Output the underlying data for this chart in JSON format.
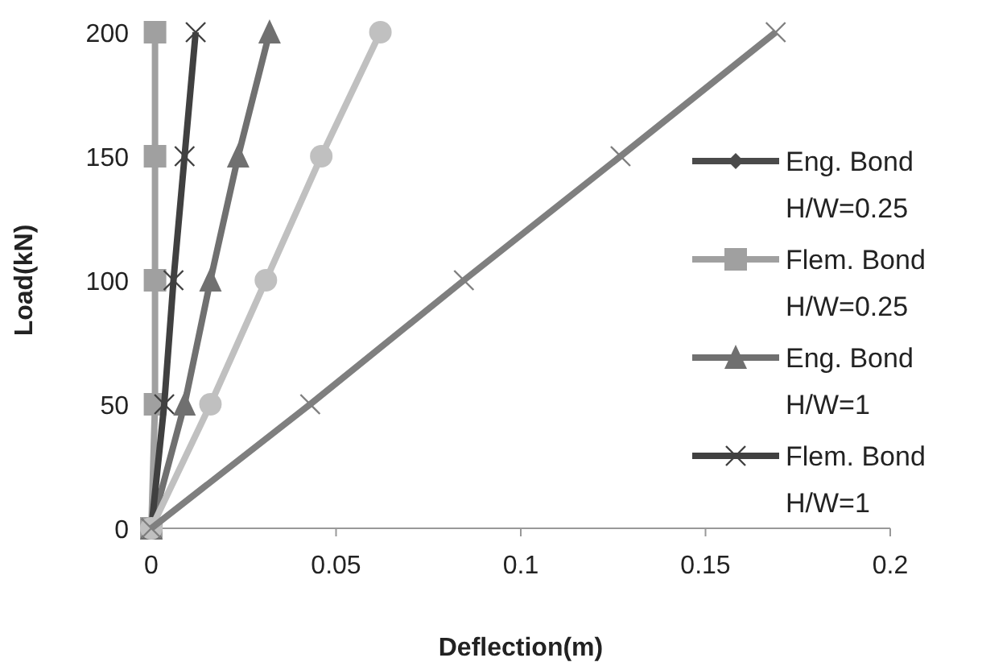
{
  "chart_data": {
    "type": "line",
    "xlabel": "Deflection(m)",
    "ylabel": "Load(kN)",
    "xlim": [
      0,
      0.2
    ],
    "xticks": [
      0,
      0.05,
      0.1,
      0.15,
      0.2
    ],
    "ylim": [
      0,
      200
    ],
    "yticks": [
      0,
      50,
      100,
      150,
      200
    ],
    "grid": false,
    "legend": "right",
    "series": [
      {
        "name": "Eng. Bond H/W=0.25",
        "color": "#4a4a4a",
        "marker": "diamond",
        "x": [
          null,
          null,
          null,
          null,
          null
        ],
        "values": [
          null,
          null,
          null,
          null,
          null
        ]
      },
      {
        "name": "Flem. Bond H/W=0.25",
        "color": "#a0a0a0",
        "marker": "square",
        "x": [
          0,
          0.001,
          0.001,
          0.001,
          0.001
        ],
        "values": [
          0,
          50,
          100,
          150,
          200
        ]
      },
      {
        "name": "Eng. Bond H/W=1",
        "color": "#707070",
        "marker": "triangle",
        "x": [
          0,
          0.009,
          0.016,
          0.0235,
          0.032
        ],
        "values": [
          0,
          50,
          100,
          150,
          200
        ]
      },
      {
        "name": "Flem. Bond H/W=1",
        "color": "#404040",
        "marker": "cross",
        "x": [
          0,
          0.0035,
          0.006,
          0.009,
          0.012
        ],
        "values": [
          0,
          50,
          100,
          150,
          200
        ]
      },
      {
        "color": "#c0c0c0",
        "marker": "circle",
        "x": [
          0,
          0.016,
          0.031,
          0.046,
          0.062
        ],
        "values": [
          0,
          50,
          100,
          150,
          200
        ]
      },
      {
        "color": "#7f7f7f",
        "marker": "cross",
        "x": [
          0,
          0.043,
          0.0846,
          0.127,
          0.169
        ],
        "values": [
          0,
          50,
          100,
          150,
          200
        ]
      }
    ]
  }
}
